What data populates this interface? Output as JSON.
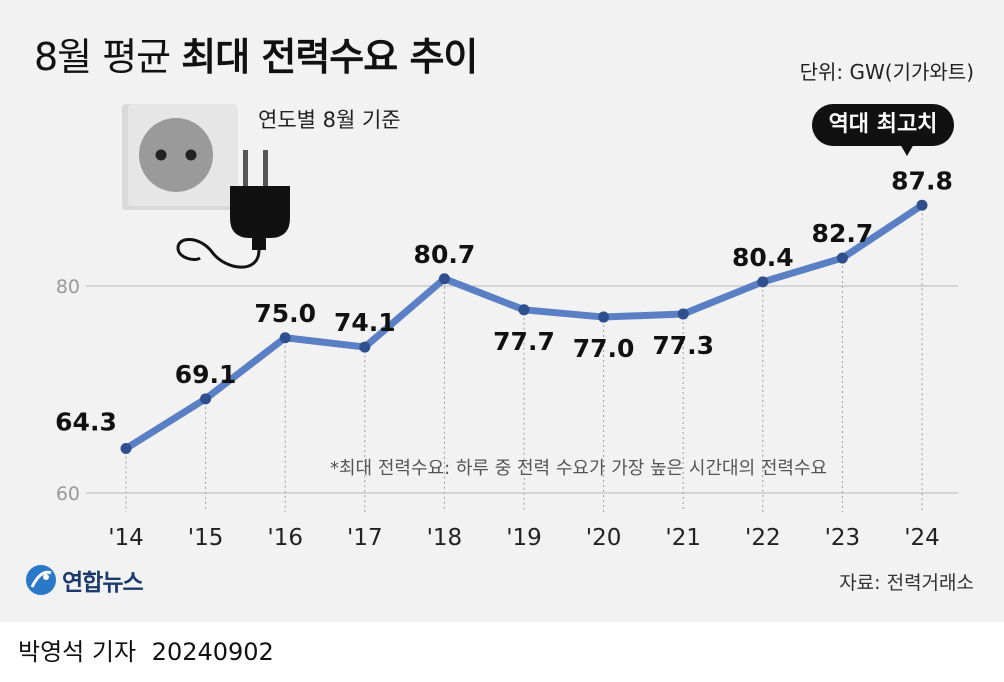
{
  "header": {
    "title_light": "8월 평균",
    "title_bold": "최대 전력수요 추이",
    "unit": "단위: GW(기가와트)",
    "subtitle": "연도별 8월 기준"
  },
  "annotation": {
    "badge": "역대 최고치"
  },
  "note": "*최대 전력수요: 하루 중 전력 수요가 가장 높은 시간대의 전력수요",
  "source": "자료: 전력거래소",
  "logo": "연합뉴스",
  "credit": {
    "author": "박영석 기자",
    "date": "20240902"
  },
  "colors": {
    "line": "#5a7fc4",
    "point": "#2f4f8f",
    "background": "#f2f2f2"
  },
  "chart_data": {
    "type": "line",
    "title": "8월 평균 최대 전력수요 추이",
    "categories": [
      "'14",
      "'15",
      "'16",
      "'17",
      "'18",
      "'19",
      "'20",
      "'21",
      "'22",
      "'23",
      "'24"
    ],
    "values": [
      64.3,
      69.1,
      75.0,
      74.1,
      80.7,
      77.7,
      77.0,
      77.3,
      80.4,
      82.7,
      87.8
    ],
    "value_labels": [
      "64.3",
      "69.1",
      "75.0",
      "74.1",
      "80.7",
      "77.7",
      "77.0",
      "77.3",
      "80.4",
      "82.7",
      "87.8"
    ],
    "yticks": [
      60,
      80
    ],
    "ylim": [
      60,
      80
    ],
    "grid": true,
    "xlabel": "",
    "ylabel": ""
  }
}
